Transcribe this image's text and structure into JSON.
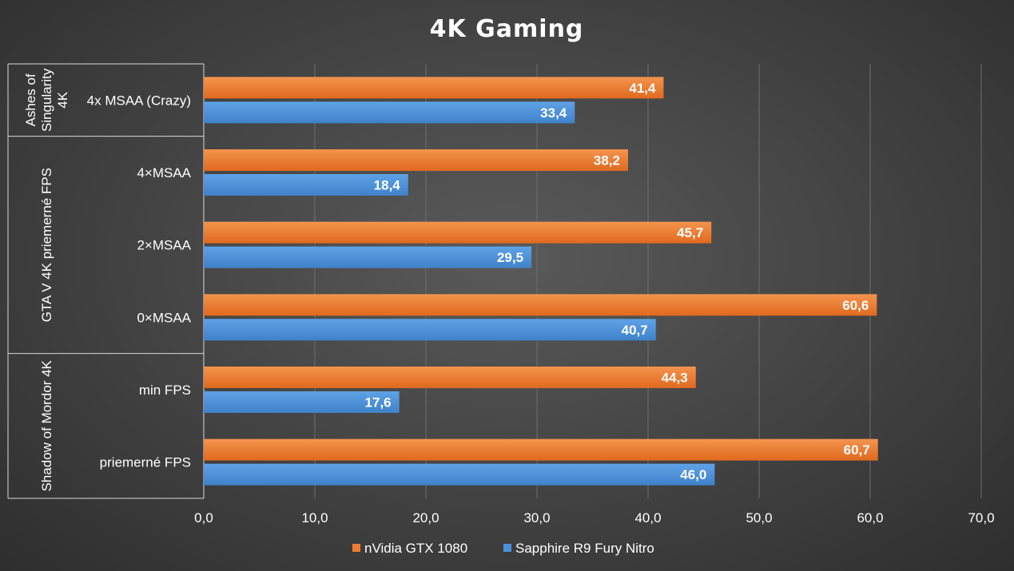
{
  "chart_data": {
    "type": "bar",
    "orientation": "horizontal",
    "title": "4K Gaming",
    "xlim": [
      0,
      70
    ],
    "xticks": [
      "0,0",
      "10,0",
      "20,0",
      "30,0",
      "40,0",
      "50,0",
      "60,0",
      "70,0"
    ],
    "xtick_values": [
      0,
      10,
      20,
      30,
      40,
      50,
      60,
      70
    ],
    "grid": true,
    "legend_position": "bottom",
    "groups": [
      {
        "label": "Ashes of Singularity 4K",
        "label_lines": [
          "Ashes of",
          "Singularity",
          "4K"
        ],
        "categories": [
          "4x MSAA (Crazy)"
        ]
      },
      {
        "label": "GTA V 4K priemerné FPS",
        "label_lines": [
          "GTA V 4K priemerné FPS"
        ],
        "categories": [
          "4×MSAA",
          "2×MSAA",
          "0×MSAA"
        ]
      },
      {
        "label": "Shadow of Mordor 4K",
        "label_lines": [
          "Shadow of Mordor 4K"
        ],
        "categories": [
          "min FPS",
          "priemerné FPS"
        ]
      }
    ],
    "categories": [
      "4x MSAA (Crazy)",
      "4×MSAA",
      "2×MSAA",
      "0×MSAA",
      "min FPS",
      "priemerné FPS"
    ],
    "series": [
      {
        "name": "nVidia GTX 1080",
        "color": "#ED7D31",
        "values": [
          41.4,
          38.2,
          45.7,
          60.6,
          44.3,
          60.7
        ],
        "labels": [
          "41,4",
          "38,2",
          "45,7",
          "60,6",
          "44,3",
          "60,7"
        ]
      },
      {
        "name": "Sapphire R9 Fury Nitro",
        "color": "#4A90D9",
        "values": [
          33.4,
          18.4,
          29.5,
          40.7,
          17.6,
          46.0
        ],
        "labels": [
          "33,4",
          "18,4",
          "29,5",
          "40,7",
          "17,6",
          "46,0"
        ]
      }
    ]
  }
}
